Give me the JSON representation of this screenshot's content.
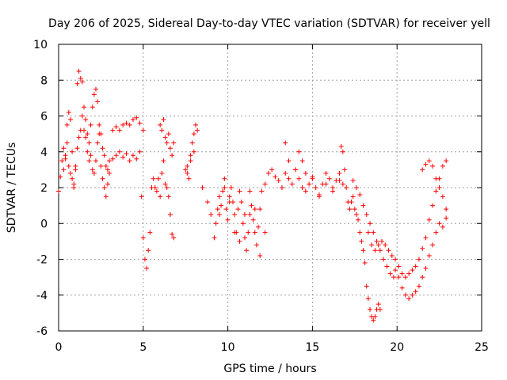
{
  "chart_data": {
    "type": "scatter",
    "title": "Day 206 of 2025, Sidereal Day-to-day VTEC variation (SDTVAR) for receiver yell",
    "xlabel": "GPS time / hours",
    "ylabel": "SDTVAR / TECUs",
    "xlim": [
      0,
      25
    ],
    "ylim": [
      -6,
      10
    ],
    "xticks": [
      0,
      5,
      10,
      15,
      20,
      25
    ],
    "yticks": [
      -6,
      -4,
      -2,
      0,
      2,
      4,
      6,
      8,
      10
    ],
    "grid": true,
    "marker": "+",
    "marker_color": "#ff0000",
    "series": [
      {
        "name": "SDTVAR",
        "x": [
          0.0,
          0.1,
          0.2,
          0.3,
          0.4,
          0.5,
          0.6,
          0.7,
          0.8,
          0.9,
          1.0,
          1.1,
          1.2,
          1.3,
          1.4,
          1.5,
          1.6,
          1.7,
          1.8,
          1.9,
          2.0,
          2.1,
          2.2,
          2.3,
          2.4,
          2.5,
          2.6,
          2.7,
          2.8,
          2.9,
          3.0,
          0.3,
          0.4,
          0.5,
          0.6,
          0.7,
          0.8,
          0.9,
          1.0,
          1.1,
          1.2,
          1.3,
          1.4,
          1.5,
          1.6,
          1.7,
          1.8,
          1.9,
          2.0,
          2.1,
          2.2,
          2.3,
          2.4,
          2.5,
          2.6,
          2.7,
          2.8,
          2.9,
          3.0,
          3.2,
          3.4,
          3.6,
          3.8,
          4.0,
          4.2,
          4.4,
          4.6,
          4.8,
          5.0,
          3.2,
          3.4,
          3.6,
          3.8,
          4.0,
          4.2,
          4.4,
          4.6,
          4.8,
          4.9,
          5.0,
          5.1,
          5.2,
          5.3,
          5.4,
          5.5,
          5.6,
          5.7,
          5.8,
          5.9,
          6.0,
          6.1,
          6.2,
          6.3,
          6.4,
          6.5,
          6.6,
          6.7,
          6.8,
          6.0,
          6.1,
          6.2,
          6.3,
          6.4,
          6.5,
          6.6,
          6.7,
          6.8,
          7.5,
          7.6,
          7.7,
          7.8,
          7.9,
          8.0,
          8.1,
          8.2,
          7.6,
          7.8,
          8.0,
          8.5,
          8.8,
          9.0,
          9.2,
          9.3,
          9.4,
          9.5,
          9.6,
          9.7,
          9.8,
          9.9,
          10.0,
          10.1,
          10.2,
          10.3,
          10.4,
          10.5,
          10.6,
          10.7,
          10.8,
          10.9,
          11.0,
          11.1,
          11.2,
          11.3,
          11.4,
          11.5,
          11.6,
          11.7,
          11.8,
          11.9,
          12.0,
          9.5,
          9.8,
          10.1,
          10.4,
          10.7,
          11.0,
          11.3,
          11.6,
          11.9,
          12.2,
          12.2,
          12.4,
          12.6,
          12.8,
          13.0,
          13.2,
          13.4,
          13.6,
          13.8,
          14.0,
          14.2,
          14.4,
          14.6,
          14.8,
          15.0,
          15.2,
          15.4,
          15.6,
          15.8,
          16.0,
          16.2,
          16.4,
          16.6,
          16.8,
          13.4,
          13.6,
          14.0,
          14.2,
          14.4,
          14.6,
          15.0,
          15.4,
          15.8,
          16.2,
          16.6,
          16.7,
          16.8,
          16.9,
          17.0,
          17.1,
          17.2,
          17.3,
          17.4,
          17.5,
          17.6,
          17.7,
          17.8,
          17.9,
          18.0,
          18.1,
          18.2,
          18.3,
          18.4,
          18.5,
          18.6,
          18.7,
          18.8,
          18.9,
          19.0,
          17.4,
          17.6,
          17.8,
          18.0,
          18.2,
          18.4,
          18.6,
          18.8,
          19.0,
          19.2,
          19.4,
          19.6,
          19.8,
          18.3,
          18.5,
          18.7,
          18.9,
          19.1,
          19.3,
          19.5,
          19.7,
          19.9,
          20.1,
          20.3,
          20.5,
          20.7,
          20.9,
          21.1,
          21.3,
          21.5,
          21.7,
          21.9,
          22.1,
          22.3,
          22.5,
          22.7,
          22.9,
          19.9,
          20.1,
          20.3,
          20.5,
          20.7,
          20.9,
          21.1,
          21.3,
          21.5,
          21.7,
          21.9,
          22.1,
          22.3,
          22.5,
          22.7,
          22.9,
          21.5,
          21.7,
          21.9,
          22.1,
          22.3,
          22.5,
          22.7,
          22.9
        ],
        "y": [
          1.8,
          2.6,
          3.5,
          4.2,
          3.6,
          5.5,
          6.2,
          5.8,
          4.0,
          2.2,
          3.2,
          7.8,
          8.5,
          8.1,
          7.9,
          5.2,
          4.8,
          4.0,
          3.5,
          5.5,
          6.5,
          7.2,
          7.5,
          6.8,
          5.0,
          3.2,
          2.5,
          2.0,
          1.5,
          2.2,
          3.5,
          3.0,
          3.8,
          4.5,
          3.2,
          2.8,
          2.5,
          2.0,
          3.0,
          4.2,
          4.8,
          5.2,
          6.0,
          6.5,
          5.8,
          5.0,
          4.5,
          3.8,
          3.0,
          2.8,
          3.5,
          4.5,
          5.5,
          5.0,
          4.2,
          3.8,
          3.2,
          3.0,
          2.8,
          5.2,
          5.4,
          5.2,
          5.5,
          5.6,
          5.5,
          5.8,
          5.9,
          5.6,
          5.2,
          3.6,
          3.8,
          4.0,
          3.7,
          3.9,
          3.5,
          3.8,
          3.6,
          4.0,
          1.5,
          -0.8,
          -2.0,
          -2.5,
          -1.5,
          -0.5,
          2.0,
          2.5,
          2.0,
          1.8,
          2.5,
          1.5,
          2.8,
          3.5,
          2.2,
          2.0,
          1.5,
          0.5,
          -0.6,
          -0.8,
          5.5,
          5.2,
          5.8,
          4.8,
          4.5,
          5.0,
          4.2,
          3.8,
          4.5,
          3.0,
          3.2,
          2.5,
          3.8,
          4.5,
          5.0,
          5.5,
          5.2,
          2.8,
          3.5,
          4.0,
          2.0,
          1.2,
          0.5,
          -0.8,
          0.0,
          0.8,
          1.5,
          1.0,
          1.8,
          2.5,
          0.8,
          0.2,
          1.5,
          2.0,
          1.2,
          0.5,
          -0.5,
          0.8,
          1.8,
          1.2,
          0.0,
          -0.8,
          -1.5,
          -0.5,
          0.5,
          1.0,
          0.2,
          -0.5,
          -1.2,
          -0.2,
          0.8,
          1.8,
          0.5,
          2.0,
          1.2,
          -0.5,
          -1.0,
          0.5,
          1.8,
          0.8,
          -1.8,
          -0.5,
          2.2,
          2.8,
          3.0,
          2.6,
          2.4,
          2.0,
          2.8,
          2.5,
          2.2,
          3.0,
          4.0,
          3.5,
          2.8,
          2.2,
          2.5,
          2.0,
          1.5,
          2.2,
          2.8,
          2.5,
          2.0,
          2.4,
          2.8,
          2.2,
          4.5,
          3.5,
          3.0,
          2.5,
          2.0,
          1.8,
          2.6,
          1.6,
          2.2,
          1.8,
          2.4,
          4.3,
          4.0,
          3.0,
          2.0,
          1.2,
          0.8,
          1.2,
          1.5,
          0.8,
          0.5,
          0.2,
          -0.5,
          -1.0,
          -1.5,
          -2.2,
          -3.5,
          -4.2,
          -4.8,
          -5.2,
          -5.4,
          -5.2,
          -4.8,
          -4.5,
          -4.8,
          2.4,
          2.0,
          1.6,
          1.0,
          0.5,
          0.0,
          -0.5,
          -1.0,
          -1.5,
          -2.0,
          -2.4,
          -2.8,
          -3.0,
          -0.5,
          -1.2,
          -1.5,
          -1.2,
          -1.0,
          -1.2,
          -1.5,
          -1.8,
          -2.0,
          -2.4,
          -2.8,
          -3.0,
          -2.8,
          -2.6,
          -2.4,
          -2.0,
          -1.4,
          -0.8,
          0.2,
          1.0,
          1.8,
          2.5,
          3.2,
          3.5,
          -2.6,
          -3.0,
          -3.6,
          -4.0,
          -4.2,
          -4.0,
          -3.8,
          -3.5,
          -3.0,
          -2.5,
          -1.8,
          -1.2,
          -0.5,
          0.0,
          -0.2,
          0.3,
          3.0,
          3.3,
          3.5,
          3.2,
          2.5,
          2.0,
          1.5,
          0.8
        ]
      }
    ]
  }
}
